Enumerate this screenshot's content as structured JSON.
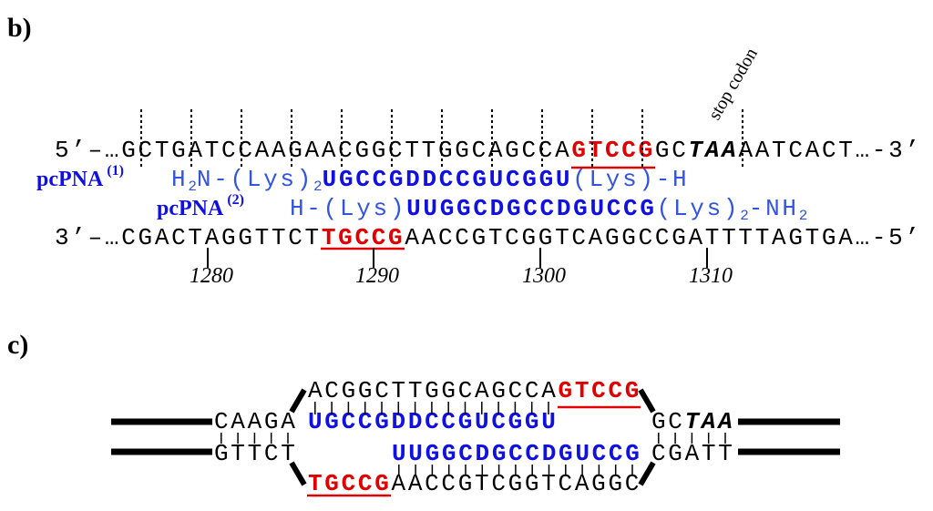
{
  "panel_b": {
    "label": "b)",
    "stop_codon": "stop codon",
    "top_strand": {
      "start": "5’–…GCTGATCCAAGAACGGCTTGGCAGCCA",
      "site": "GTCCG",
      "middle": "GC",
      "stop": "TAA",
      "end": "AATCACT…-3’"
    },
    "pna1": {
      "name": "pcPNA",
      "index": "(1)",
      "n_term": [
        "H",
        "2",
        "N-(Lys)",
        "2"
      ],
      "sequence": "UGCCGDDCCGUCGGU",
      "c_term": "(Lys)-H"
    },
    "pna2": {
      "name": "pcPNA",
      "index": "(2)",
      "n_term": "H-(Lys)",
      "sequence": "UUGGCDGCCDGUCCG",
      "c_term": [
        "(Lys)",
        "2",
        "-NH",
        "2"
      ]
    },
    "bottom_strand": {
      "start": "3’–…CGACTAGGTTCT",
      "site": "TGCCG",
      "end": "AACCGTCGGTCAGGCCGATTTTAGTGA…-5’"
    },
    "positions": [
      "1280",
      "1290",
      "1300",
      "1310"
    ]
  },
  "panel_c": {
    "label": "c)",
    "row1": [
      "ACGGCTTGGCAGCCA",
      "GTCCG"
    ],
    "row2": [
      "CAAGA",
      "UGCCGDDCCGUCGGU",
      "GC",
      "TAA"
    ],
    "row3": [
      "GTTCT",
      "UUGGCDGCCDGUCCG",
      "CGATT"
    ],
    "row4": [
      "TGCCG",
      "AACCGTCGGTCAGGC"
    ]
  }
}
